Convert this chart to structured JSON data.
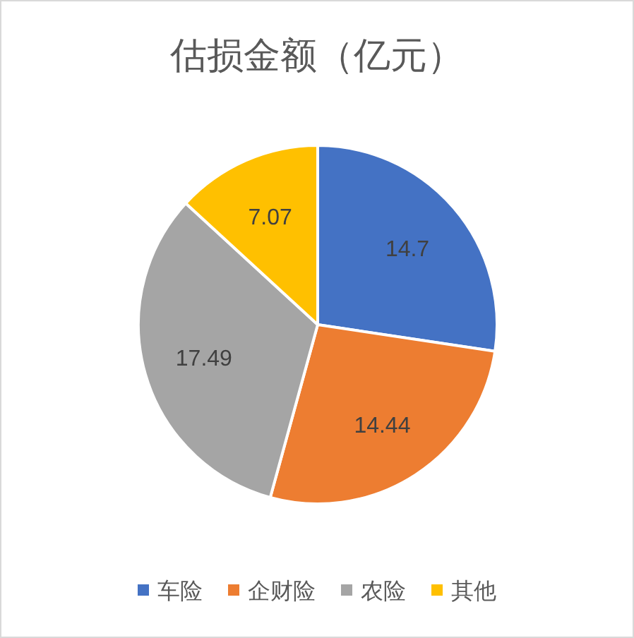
{
  "chart_data": {
    "type": "pie",
    "title": "估损金额（亿元）",
    "categories": [
      "车险",
      "企财险",
      "农险",
      "其他"
    ],
    "values": [
      14.7,
      14.44,
      17.49,
      7.07
    ],
    "colors": [
      "#4472c4",
      "#ed7d31",
      "#a5a5a5",
      "#ffc000"
    ],
    "data_labels": true,
    "legend": "bottom"
  }
}
